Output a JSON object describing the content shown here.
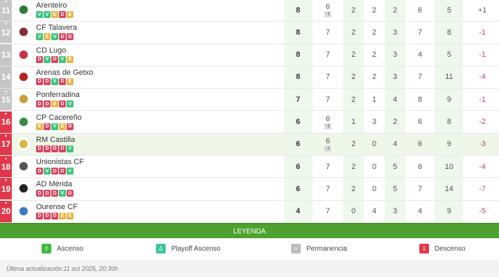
{
  "rows": [
    {
      "pos": "11",
      "zone": "grey",
      "arrow": "▼",
      "team": "Arenteiro",
      "crest": "#2f7a3a",
      "form": [
        "V",
        "V",
        "E",
        "D",
        "E"
      ],
      "pts": "8",
      "pj": "6",
      "pen": "-1",
      "g": "2",
      "e": "2",
      "p": "2",
      "gf": "6",
      "gc": "5",
      "dif": "+1"
    },
    {
      "pos": "12",
      "zone": "grey",
      "arrow": "▼",
      "team": "CF Talavera",
      "crest": "#8a2a3a",
      "form": [
        "V",
        "E",
        "V",
        "D",
        "D"
      ],
      "pts": "8",
      "pj": "7",
      "pen": "",
      "g": "2",
      "e": "2",
      "p": "3",
      "gf": "7",
      "gc": "8",
      "dif": "-1"
    },
    {
      "pos": "13",
      "zone": "grey",
      "arrow": "",
      "team": "CD Lugo",
      "crest": "#c8324a",
      "form": [
        "D",
        "V",
        "D",
        "V",
        "E"
      ],
      "pts": "8",
      "pj": "7",
      "pen": "",
      "g": "2",
      "e": "2",
      "p": "3",
      "gf": "4",
      "gc": "5",
      "dif": "-1"
    },
    {
      "pos": "14",
      "zone": "grey",
      "arrow": "",
      "team": "Arenas de Getxo",
      "crest": "#b3261e",
      "form": [
        "D",
        "D",
        "V",
        "D",
        "E"
      ],
      "pts": "8",
      "pj": "7",
      "pen": "",
      "g": "2",
      "e": "2",
      "p": "3",
      "gf": "7",
      "gc": "11",
      "dif": "-4"
    },
    {
      "pos": "15",
      "zone": "grey",
      "arrow": "▲",
      "team": "Ponferradina",
      "crest": "#c9a03a",
      "form": [
        "D",
        "D",
        "E",
        "D",
        "V"
      ],
      "pts": "7",
      "pj": "7",
      "pen": "",
      "g": "2",
      "e": "1",
      "p": "4",
      "gf": "8",
      "gc": "9",
      "dif": "-1"
    },
    {
      "pos": "16",
      "zone": "red",
      "arrow": "▼",
      "team": "CP Cacereño",
      "crest": "#3a8a4a",
      "form": [
        "E",
        "D",
        "V",
        "E",
        "D"
      ],
      "pts": "6",
      "pj": "6",
      "pen": "-1",
      "g": "1",
      "e": "3",
      "p": "2",
      "gf": "6",
      "gc": "8",
      "dif": "-2"
    },
    {
      "pos": "17",
      "zone": "red",
      "arrow": "▼",
      "team": "RM Castilla",
      "crest": "#d6b94a",
      "form": [
        "D",
        "D",
        "D",
        "D",
        "V"
      ],
      "pts": "6",
      "pj": "6",
      "pen": "-1",
      "g": "2",
      "e": "0",
      "p": "4",
      "gf": "6",
      "gc": "9",
      "dif": "-3",
      "highlight": true
    },
    {
      "pos": "18",
      "zone": "red",
      "arrow": "▲",
      "team": "Unionistas CF",
      "crest": "#555555",
      "form": [
        "D",
        "V",
        "D",
        "D",
        "V"
      ],
      "pts": "6",
      "pj": "7",
      "pen": "",
      "g": "2",
      "e": "0",
      "p": "5",
      "gf": "6",
      "gc": "10",
      "dif": "-4"
    },
    {
      "pos": "19",
      "zone": "red",
      "arrow": "▼",
      "team": "AD Mérida",
      "crest": "#222222",
      "form": [
        "D",
        "D",
        "D",
        "V",
        "D"
      ],
      "pts": "6",
      "pj": "7",
      "pen": "",
      "g": "2",
      "e": "0",
      "p": "5",
      "gf": "7",
      "gc": "14",
      "dif": "-7"
    },
    {
      "pos": "20",
      "zone": "red",
      "arrow": "▼",
      "team": "Ourense CF",
      "crest": "#3a7ac8",
      "form": [
        "D",
        "D",
        "D",
        "E",
        "E"
      ],
      "pts": "4",
      "pj": "7",
      "pen": "",
      "g": "0",
      "e": "4",
      "p": "3",
      "gf": "4",
      "gc": "9",
      "dif": "-5"
    }
  ],
  "legend": {
    "title": "LEYENDA",
    "items": [
      {
        "label": "Ascenso",
        "color": "#3dbb3d",
        "icon": "arrow-up-icon",
        "glyph": "⇧"
      },
      {
        "label": "Playoff Ascenso",
        "color": "#3cc49a",
        "icon": "playoff-icon",
        "glyph": "♙"
      },
      {
        "label": "Permanencia",
        "color": "#bdbdbd",
        "icon": "permanence-icon",
        "glyph": "≈"
      },
      {
        "label": "Descenso",
        "color": "#e2374a",
        "icon": "arrow-down-icon",
        "glyph": "⇩"
      }
    ]
  },
  "footer": "Última actualización:11 oct 2025, 20:30h"
}
